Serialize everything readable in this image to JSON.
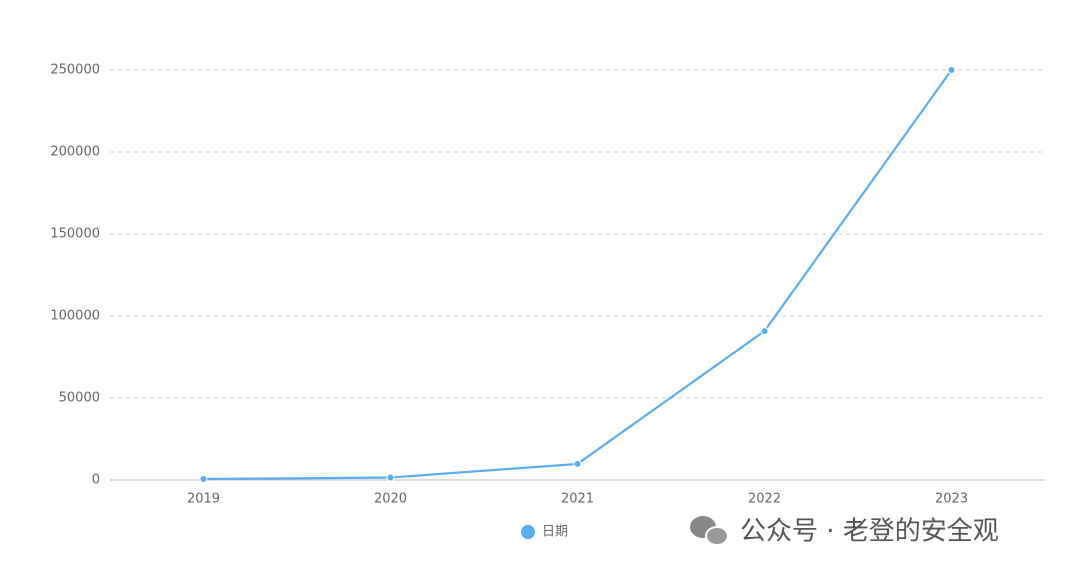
{
  "chart_data": {
    "type": "line",
    "categories": [
      "2019",
      "2020",
      "2021",
      "2022",
      "2023"
    ],
    "series": [
      {
        "name": "日期",
        "color": "#5aaeef",
        "values": [
          600,
          1500,
          9800,
          90800,
          250000
        ]
      }
    ],
    "ylim": [
      0,
      250000
    ],
    "yticks": [
      0,
      50000,
      100000,
      150000,
      200000,
      250000
    ],
    "grid": true,
    "legend": "bottom"
  },
  "watermark": "公众号 · 老登的安全观"
}
